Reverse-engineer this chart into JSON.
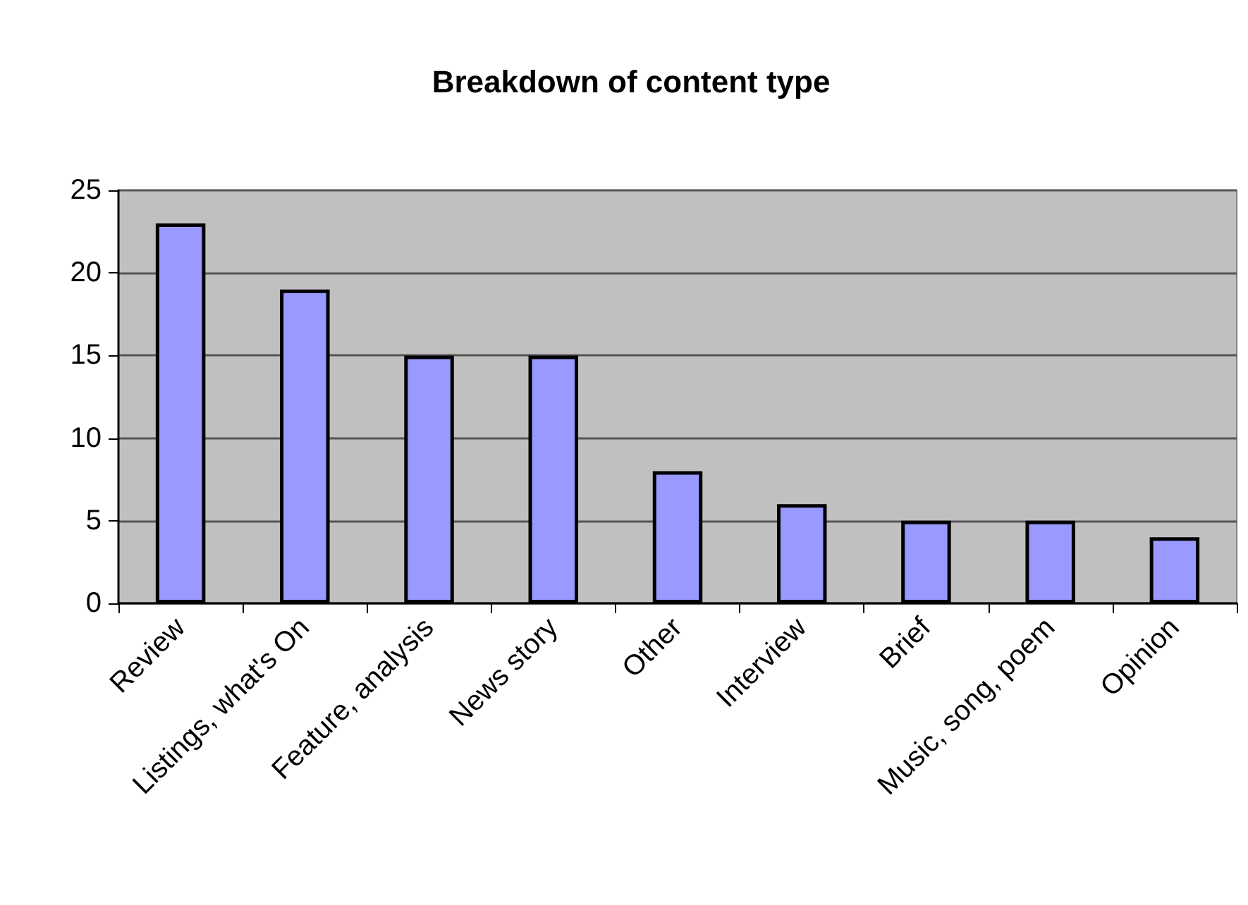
{
  "chart_data": {
    "type": "bar",
    "title": "Breakdown of content type",
    "categories": [
      "Review",
      "Listings, what's On",
      "Feature, analysis",
      "News story",
      "Other",
      "Interview",
      "Brief",
      "Music, song, poem",
      "Opinion"
    ],
    "values": [
      23,
      19,
      15,
      15,
      8,
      6,
      5,
      5,
      4
    ],
    "color": "#9999ff",
    "ylim": [
      0,
      25
    ],
    "yticks": [
      0,
      5,
      10,
      15,
      20,
      25
    ],
    "grid": "y"
  }
}
